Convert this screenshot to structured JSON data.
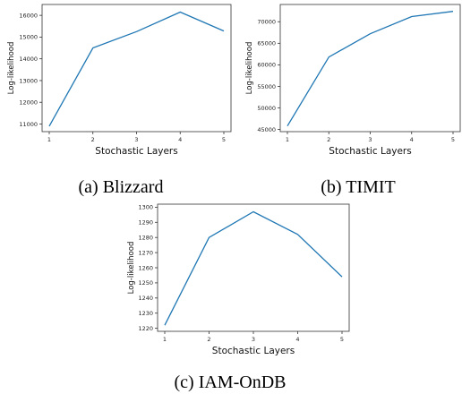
{
  "chart_data": [
    {
      "type": "line",
      "caption": "(a) Blizzard",
      "xlabel": "Stochastic Layers",
      "ylabel": "Log-likelihood",
      "x": [
        1,
        2,
        3,
        4,
        5
      ],
      "xticks": [
        "1",
        "2",
        "3",
        "4",
        "5"
      ],
      "yticks": [
        "11000",
        "12000",
        "13000",
        "14000",
        "15000",
        "16000"
      ],
      "ylim": [
        10650,
        16500
      ],
      "grid": false,
      "series": [
        {
          "values": [
            10900,
            14500,
            15250,
            16150,
            15280
          ]
        }
      ]
    },
    {
      "type": "line",
      "caption": "(b) TIMIT",
      "xlabel": "Stochastic Layers",
      "ylabel": "Log-likelihood",
      "x": [
        1,
        2,
        3,
        4,
        5
      ],
      "xticks": [
        "1",
        "2",
        "3",
        "4",
        "5"
      ],
      "yticks": [
        "45000",
        "50000",
        "55000",
        "60000",
        "65000",
        "70000"
      ],
      "ylim": [
        44500,
        74000
      ],
      "grid": false,
      "series": [
        {
          "values": [
            45800,
            61800,
            67200,
            71200,
            72400
          ]
        }
      ]
    },
    {
      "type": "line",
      "caption": "(c) IAM-OnDB",
      "xlabel": "Stochastic Layers",
      "ylabel": "Log-likelihood",
      "x": [
        1,
        2,
        3,
        4,
        5
      ],
      "xticks": [
        "1",
        "2",
        "3",
        "4",
        "5"
      ],
      "yticks": [
        "1220",
        "1230",
        "1240",
        "1250",
        "1260",
        "1270",
        "1280",
        "1290",
        "1300"
      ],
      "ylim": [
        1218,
        1302
      ],
      "grid": false,
      "series": [
        {
          "values": [
            1222,
            1280,
            1297,
            1282,
            1254
          ]
        }
      ]
    }
  ],
  "colors": {
    "line": "#1f77b4",
    "axis": "#333333"
  }
}
